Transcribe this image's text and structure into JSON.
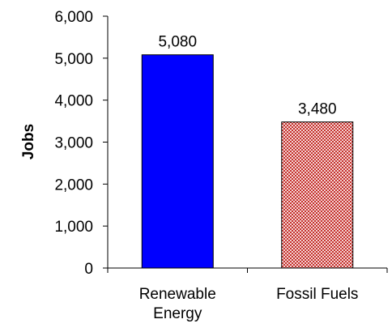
{
  "chart_data": {
    "type": "bar",
    "title": "",
    "xlabel": "",
    "ylabel": "Jobs",
    "ylim": [
      0,
      6000
    ],
    "yticks": [
      "0",
      "1,000",
      "2,000",
      "3,000",
      "4,000",
      "5,000",
      "6,000"
    ],
    "grid": false,
    "categories": [
      [
        "Renewable",
        "Energy"
      ],
      [
        "Fossil Fuels"
      ]
    ],
    "values": [
      5080,
      3480
    ],
    "data_labels": [
      "5,080",
      "3,480"
    ],
    "bar_fills": [
      "solid",
      "checkered"
    ],
    "colors": {
      "renewable": "#0000FF",
      "fossil_fill_light": "#F5D5D5",
      "fossil_fill_dark": "#C4302B",
      "bar_border": "#000000",
      "axis": "#000000"
    }
  }
}
